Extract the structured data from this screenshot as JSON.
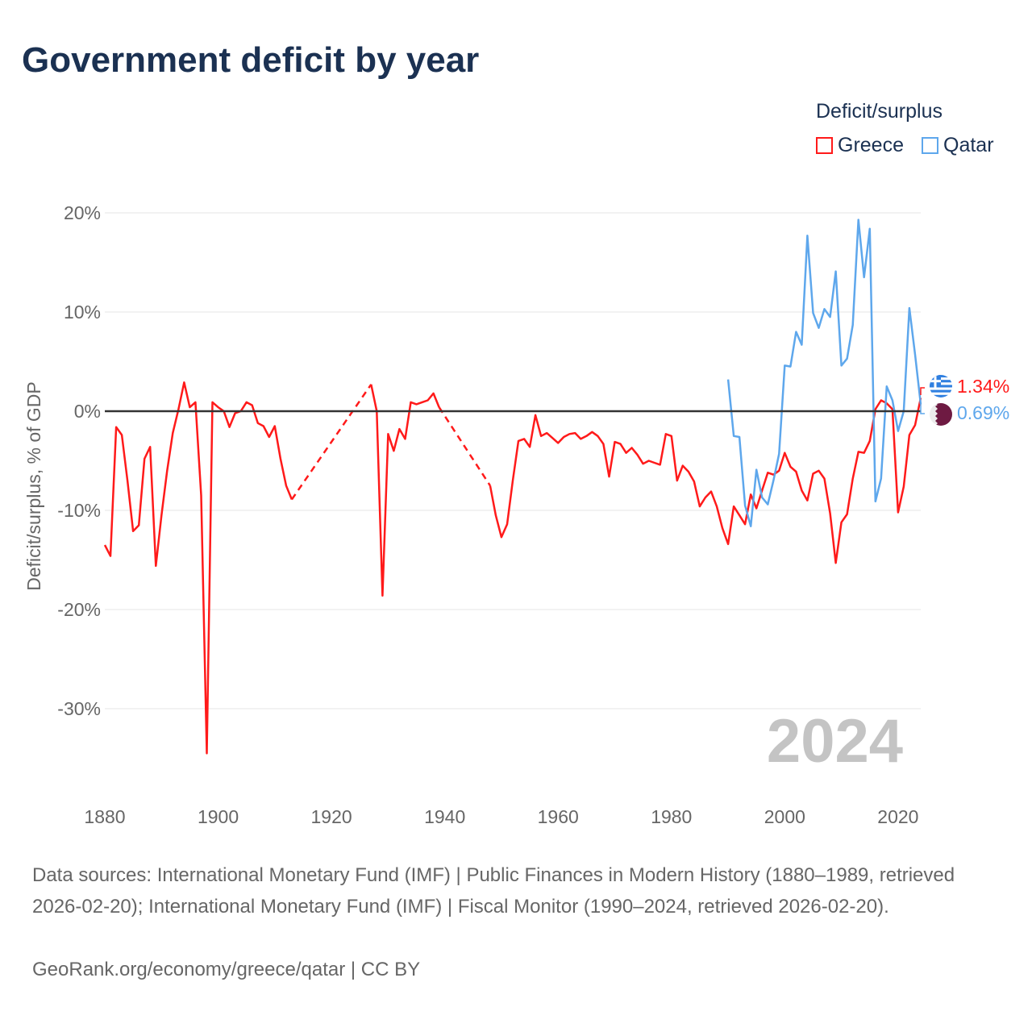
{
  "title": "Government deficit by year",
  "legend": {
    "title": "Deficit/surplus",
    "items": [
      {
        "name": "Greece",
        "color": "#ff1a1a"
      },
      {
        "name": "Qatar",
        "color": "#5ea7ec"
      }
    ]
  },
  "year_watermark": "2024",
  "end_labels": [
    {
      "country": "Greece",
      "value": "1.34%",
      "flag": "greece-flag"
    },
    {
      "country": "Qatar",
      "value": "0.69%",
      "flag": "qatar-flag"
    }
  ],
  "footer": {
    "sources": "Data sources: International Monetary Fund (IMF) | Public Finances in Modern History (1880–1989, retrieved 2026-02-20); International Monetary Fund (IMF) | Fiscal Monitor (1990–2024, retrieved 2026-02-20).",
    "credit": "GeoRank.org/economy/greece/qatar | CC BY"
  },
  "chart_data": {
    "type": "line",
    "title": "Government deficit by year",
    "xlabel": "",
    "ylabel": "Deficit/surplus, % of GDP",
    "xlim": [
      1880,
      2024
    ],
    "ylim": [
      -36,
      21
    ],
    "x_ticks": [
      1880,
      1900,
      1920,
      1940,
      1960,
      1980,
      2000,
      2020
    ],
    "y_ticks": [
      20,
      10,
      0,
      -10,
      -20,
      -30
    ],
    "y_tick_labels": [
      "20%",
      "10%",
      "0%",
      "-10%",
      "-20%",
      "-30%"
    ],
    "x_tick_labels": [
      "1880",
      "1900",
      "1920",
      "1940",
      "1960",
      "1980",
      "2000",
      "2020"
    ],
    "grid": true,
    "legend_position": "top-right",
    "series": [
      {
        "name": "Greece",
        "start_year": 1880,
        "values": [
          -13.5,
          -14.6,
          -1.6,
          -2.4,
          -7,
          -12.1,
          -11.5,
          -4.8,
          -3.6,
          -15.6,
          -10.5,
          -6,
          -2.2,
          0.2,
          2.9,
          0.4,
          0.9,
          -8.5,
          -34.5,
          0.9,
          0.4,
          0.0,
          -1.6,
          -0.2,
          0,
          0.9,
          0.6,
          -1.2,
          -1.5,
          -2.6,
          -1.5,
          -4.8,
          -7.5,
          -8.9,
          null,
          null,
          null,
          null,
          null,
          null,
          null,
          null,
          null,
          null,
          null,
          null,
          null,
          2.7,
          0,
          -18.6,
          -2.3,
          -4,
          -1.8,
          -2.8,
          0.9,
          0.7,
          0.9,
          1.1,
          1.8,
          0.4,
          null,
          null,
          null,
          null,
          null,
          null,
          null,
          null,
          -7.5,
          -10.5,
          -12.7,
          -11.4,
          -7,
          -3,
          -2.8,
          -3.6,
          -0.4,
          -2.5,
          -2.2,
          -2.7,
          -3.2,
          -2.6,
          -2.3,
          -2.2,
          -2.8,
          -2.5,
          -2.1,
          -2.5,
          -3.3,
          -6.6,
          -3.1,
          -3.3,
          -4.2,
          -3.7,
          -4.4,
          -5.3,
          -5,
          -5.2,
          -5.4,
          -2.3,
          -2.5,
          -7,
          -5.5,
          -6.1,
          -7.1,
          -9.6,
          -8.7,
          -8.1,
          -9.6,
          -11.8,
          -13.4,
          -9.6,
          -10.5,
          -11.4,
          -8.4,
          -9.8,
          -8,
          -6.2,
          -6.4,
          -6,
          -4.2,
          -5.6,
          -6.1,
          -8,
          -9,
          -6.3,
          -6,
          -6.8,
          -10.3,
          -15.3,
          -11.2,
          -10.4,
          -6.8,
          -4.1,
          -4.2,
          -3,
          0.2,
          1.1,
          0.8,
          0.2,
          -10.2,
          -7.6,
          -2.4,
          -1.4,
          1.34
        ]
      },
      {
        "name": "Qatar",
        "start_year": 1990,
        "values": [
          3.2,
          -2.5,
          -2.6,
          -9.5,
          -11.6,
          -5.9,
          -8.7,
          -9.4,
          -7,
          -4.3,
          4.6,
          4.5,
          8,
          6.7,
          17.7,
          9.9,
          8.4,
          10.3,
          9.5,
          14.1,
          4.6,
          5.3,
          8.7,
          19.3,
          13.5,
          18.4,
          -9.1,
          -6.8,
          2.5,
          1.1,
          -2,
          0,
          10.4,
          5.7,
          0.69
        ]
      }
    ]
  }
}
